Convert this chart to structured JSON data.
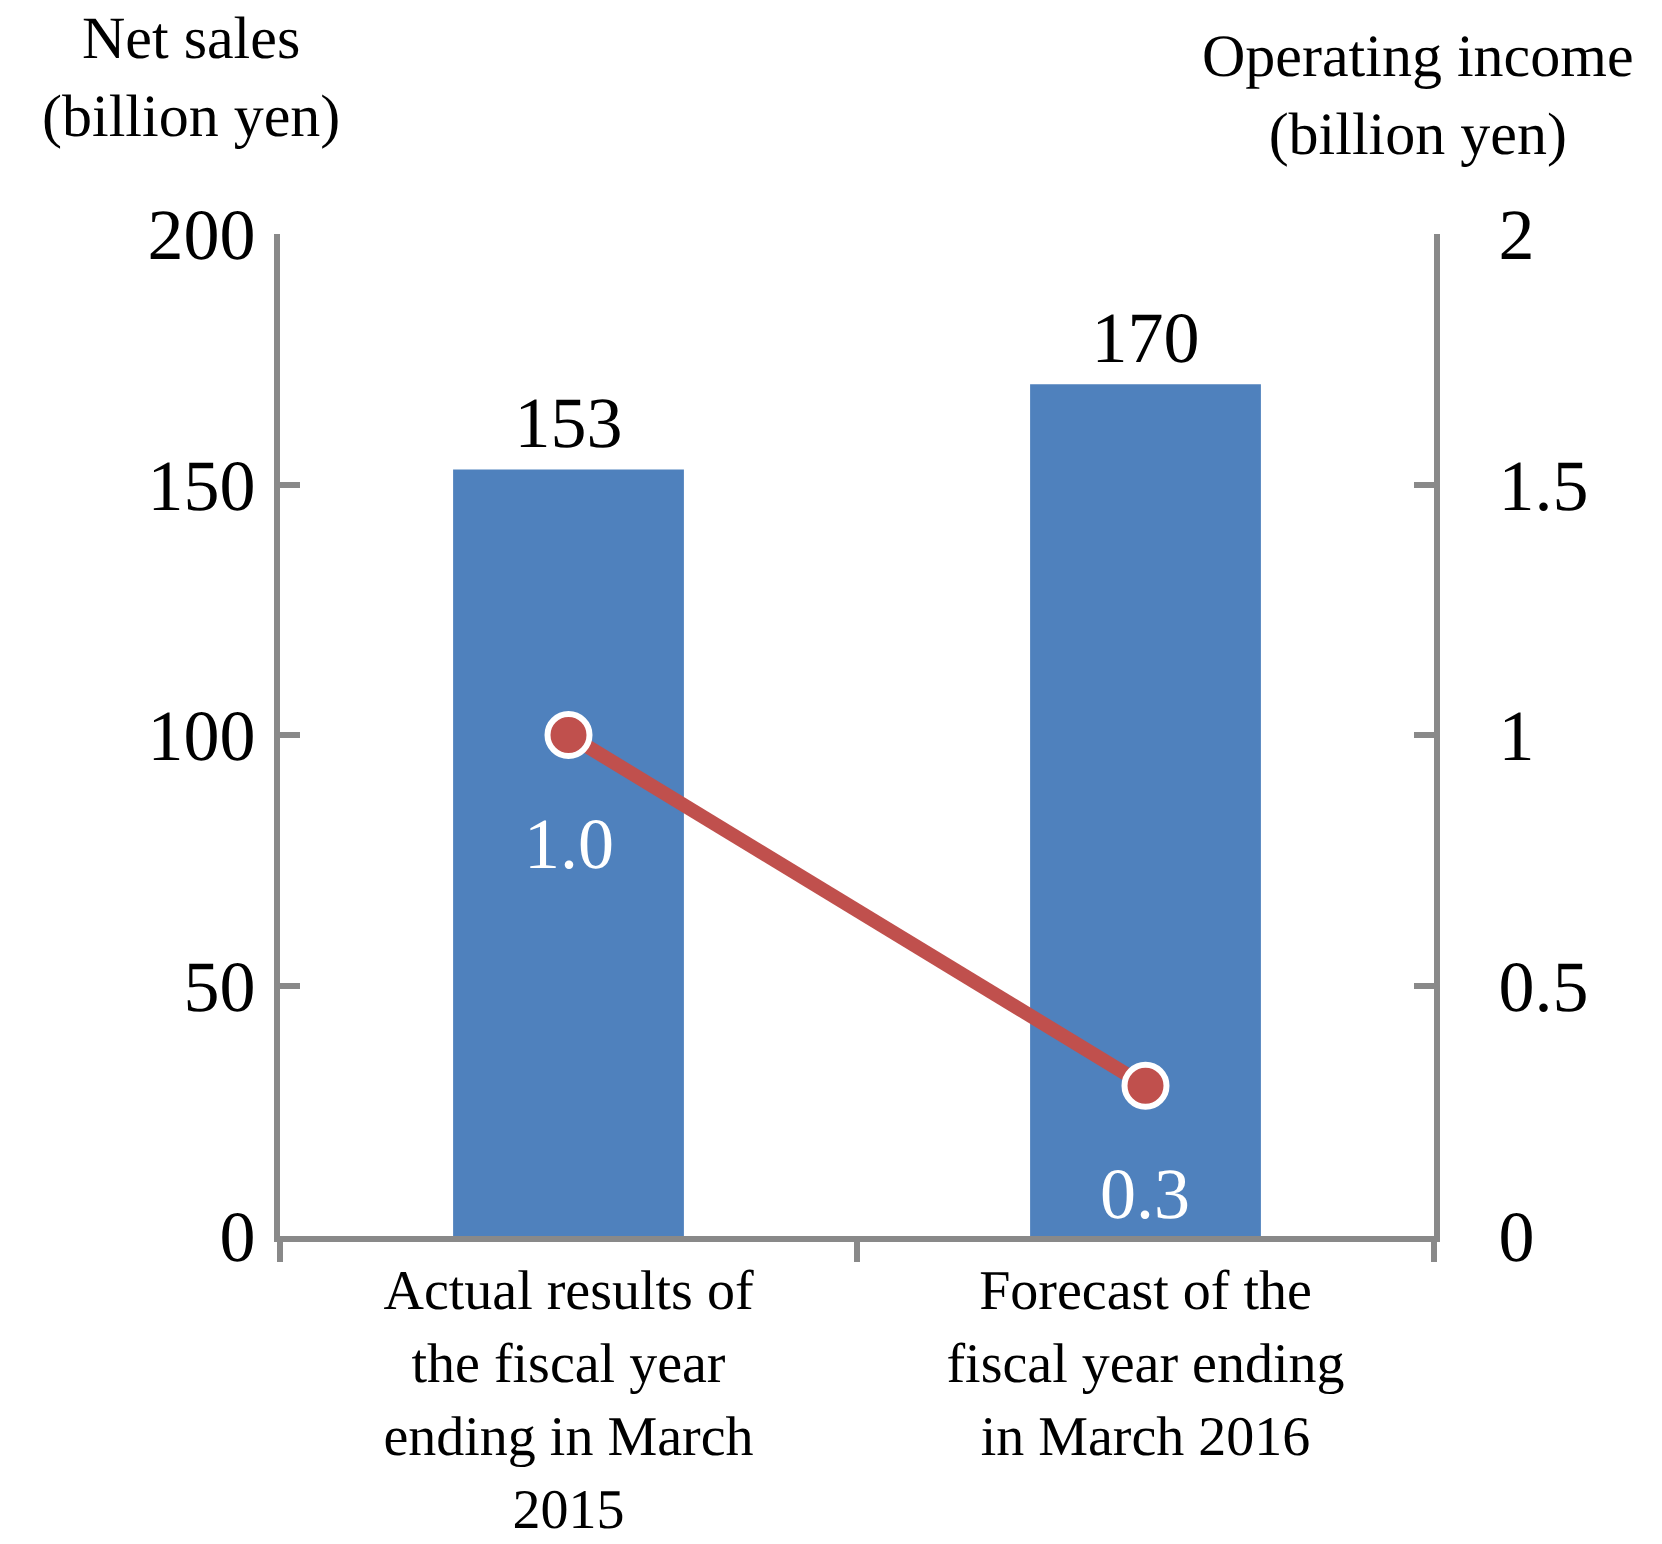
{
  "chart_data": {
    "type": "bar",
    "ylabel": "Net sales (billion yen)",
    "y2label": "Operating income (billion yen)",
    "categories": [
      "Actual results of the fiscal year ending in March 2015",
      "Forecast of the fiscal year ending in March 2016"
    ],
    "series": [
      {
        "color": "#4f81bd",
        "values": [
          153,
          170
        ],
        "value_labels": [
          "153",
          "170"
        ]
      },
      {
        "type": "line",
        "axis": "y2",
        "color": "#c0504d",
        "values": [
          1.0,
          0.3
        ],
        "value_labels": [
          "1.0",
          "0.3"
        ]
      }
    ],
    "marker": "circle",
    "ylim": [
      0,
      200
    ],
    "yticks": [
      0,
      50,
      100,
      150,
      200
    ],
    "y2lim": [
      0,
      2
    ],
    "y2ticks": [
      0,
      0.5,
      1,
      1.5,
      2
    ]
  }
}
